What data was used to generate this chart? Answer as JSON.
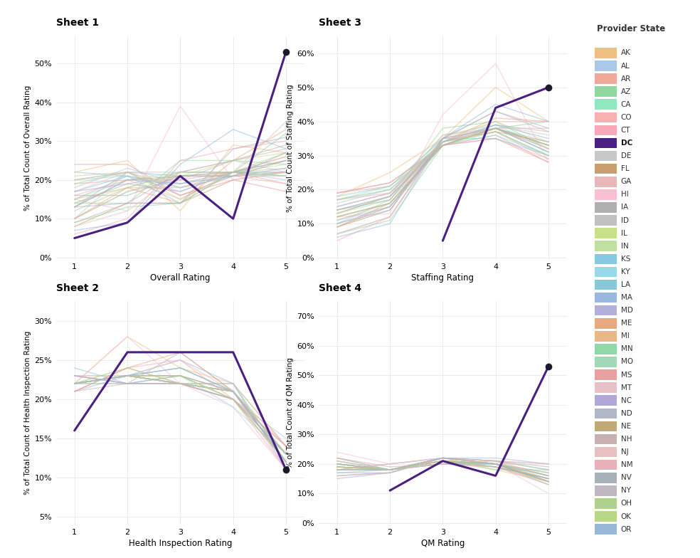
{
  "states": [
    "AK",
    "AL",
    "AR",
    "AZ",
    "CA",
    "CO",
    "CT",
    "DC",
    "DE",
    "FL",
    "GA",
    "HI",
    "IA",
    "ID",
    "IL",
    "IN",
    "KS",
    "KY",
    "LA",
    "MA",
    "MD",
    "ME",
    "MI",
    "MN",
    "MO",
    "MS",
    "MT",
    "NC",
    "ND",
    "NE",
    "NH",
    "NJ",
    "NM",
    "NV",
    "NY",
    "OH",
    "OK",
    "OR"
  ],
  "state_colors": {
    "AK": "#f0c080",
    "AL": "#aac8e8",
    "AR": "#f0a898",
    "AZ": "#90d8a0",
    "CA": "#90e8c0",
    "CO": "#f8b0b0",
    "CT": "#f8a8b8",
    "DC": "#4a2080",
    "DE": "#c8c8c8",
    "FL": "#c8a070",
    "GA": "#e8b8b8",
    "HI": "#f8c0d0",
    "IA": "#b0b0b0",
    "ID": "#c0c0c0",
    "IL": "#c8e088",
    "IN": "#c0e0a0",
    "KS": "#88c8e0",
    "KY": "#98d8e8",
    "LA": "#88c8d8",
    "MA": "#98b8e0",
    "MD": "#b0b0d8",
    "ME": "#e8a880",
    "MI": "#e8b888",
    "MN": "#90d8a8",
    "MO": "#a0d8b8",
    "MS": "#e8a0a0",
    "MT": "#e8c0c8",
    "NC": "#b0a8d8",
    "ND": "#b0b8c8",
    "NE": "#c0a878",
    "NH": "#c8b0b0",
    "NJ": "#e8c0c0",
    "NM": "#e8b0b8",
    "NV": "#a8b0b8",
    "NY": "#c0b8c0",
    "OH": "#b0d090",
    "OK": "#b8d888",
    "OR": "#98b8d8"
  },
  "dc_color": "#4a2080",
  "background_color": "#ffffff",
  "grid_color": "#e8e8e8",
  "sheet1_title": "Sheet 1",
  "sheet2_title": "Sheet 2",
  "sheet3_title": "Sheet 3",
  "sheet4_title": "Sheet 4",
  "sheet1_xlabel": "Overall Rating",
  "sheet2_xlabel": "Health Inspection Rating",
  "sheet3_xlabel": "Staffing Rating",
  "sheet4_xlabel": "QM Rating",
  "sheet1_ylabel": "% of Total Count of Overall Rating",
  "sheet2_ylabel": "% of Total Count of Health Inspection Rating",
  "sheet3_ylabel": "% of Total Count of Staffing Rating",
  "sheet4_ylabel": "% of Total Count of QM Rating",
  "legend_title": "Provider State",
  "x_vals": [
    1,
    2,
    3,
    4,
    5
  ],
  "sheet1_ylim": [
    -0.005,
    0.57
  ],
  "sheet2_ylim": [
    0.04,
    0.325
  ],
  "sheet3_ylim": [
    -0.005,
    0.65
  ],
  "sheet4_ylim": [
    -0.005,
    0.75
  ],
  "sheet1_yticks": [
    0.0,
    0.1,
    0.2,
    0.3,
    0.4,
    0.5
  ],
  "sheet2_yticks": [
    0.05,
    0.1,
    0.15,
    0.2,
    0.25,
    0.3
  ],
  "sheet3_yticks": [
    0.0,
    0.1,
    0.2,
    0.3,
    0.4,
    0.5,
    0.6
  ],
  "sheet4_yticks": [
    0.0,
    0.1,
    0.2,
    0.3,
    0.4,
    0.5,
    0.6,
    0.7
  ],
  "dc_sheet1": [
    0.05,
    0.09,
    0.21,
    0.1,
    0.53
  ],
  "dc_sheet2": [
    0.16,
    0.26,
    0.26,
    0.26,
    0.11
  ],
  "dc_sheet3": [
    null,
    null,
    0.05,
    0.44,
    0.5
  ],
  "dc_sheet4": [
    null,
    0.11,
    0.21,
    0.16,
    0.53
  ],
  "states_sheet1": {
    "AK": [
      0.22,
      0.25,
      0.12,
      0.29,
      0.27
    ],
    "AL": [
      0.18,
      0.23,
      0.19,
      0.22,
      0.2
    ],
    "AR": [
      0.19,
      0.2,
      0.2,
      0.22,
      0.19
    ],
    "AZ": [
      0.14,
      0.14,
      0.25,
      0.25,
      0.24
    ],
    "CA": [
      0.15,
      0.2,
      0.22,
      0.22,
      0.22
    ],
    "CO": [
      0.16,
      0.2,
      0.15,
      0.22,
      0.26
    ],
    "CT": [
      0.06,
      0.1,
      0.25,
      0.28,
      0.3
    ],
    "DE": [
      0.1,
      0.22,
      0.22,
      0.25,
      0.22
    ],
    "FL": [
      0.08,
      0.14,
      0.14,
      0.2,
      0.22
    ],
    "GA": [
      0.21,
      0.22,
      0.16,
      0.21,
      0.19
    ],
    "HI": [
      0.15,
      0.12,
      0.39,
      0.2,
      0.22
    ],
    "IA": [
      0.14,
      0.19,
      0.21,
      0.21,
      0.23
    ],
    "ID": [
      0.15,
      0.21,
      0.19,
      0.22,
      0.23
    ],
    "IL": [
      0.1,
      0.17,
      0.21,
      0.25,
      0.27
    ],
    "IN": [
      0.14,
      0.18,
      0.22,
      0.22,
      0.24
    ],
    "KS": [
      0.17,
      0.21,
      0.18,
      0.21,
      0.22
    ],
    "KY": [
      0.2,
      0.21,
      0.17,
      0.22,
      0.21
    ],
    "LA": [
      0.22,
      0.21,
      0.14,
      0.22,
      0.22
    ],
    "MA": [
      0.07,
      0.09,
      0.24,
      0.33,
      0.28
    ],
    "MD": [
      0.13,
      0.14,
      0.14,
      0.28,
      0.31
    ],
    "ME": [
      0.1,
      0.18,
      0.14,
      0.25,
      0.33
    ],
    "MI": [
      0.15,
      0.18,
      0.18,
      0.22,
      0.26
    ],
    "MN": [
      0.09,
      0.13,
      0.14,
      0.22,
      0.32
    ],
    "MO": [
      0.19,
      0.22,
      0.18,
      0.21,
      0.21
    ],
    "MS": [
      0.24,
      0.24,
      0.16,
      0.2,
      0.17
    ],
    "MT": [
      0.17,
      0.22,
      0.18,
      0.21,
      0.22
    ],
    "NC": [
      0.17,
      0.19,
      0.17,
      0.22,
      0.25
    ],
    "ND": [
      0.13,
      0.22,
      0.21,
      0.22,
      0.21
    ],
    "NE": [
      0.13,
      0.2,
      0.21,
      0.21,
      0.25
    ],
    "NH": [
      0.09,
      0.14,
      0.22,
      0.25,
      0.29
    ],
    "NJ": [
      0.08,
      0.12,
      0.22,
      0.22,
      0.35
    ],
    "NM": [
      0.2,
      0.22,
      0.16,
      0.21,
      0.22
    ],
    "NV": [
      0.16,
      0.16,
      0.21,
      0.22,
      0.25
    ],
    "NY": [
      0.1,
      0.17,
      0.2,
      0.25,
      0.28
    ],
    "OH": [
      0.12,
      0.18,
      0.22,
      0.22,
      0.27
    ],
    "OK": [
      0.2,
      0.22,
      0.15,
      0.22,
      0.21
    ],
    "OR": [
      0.13,
      0.2,
      0.19,
      0.21,
      0.27
    ]
  },
  "states_sheet2": {
    "AK": [
      0.22,
      0.28,
      0.24,
      0.22,
      0.12
    ],
    "AL": [
      0.22,
      0.23,
      0.22,
      0.2,
      0.15
    ],
    "AR": [
      0.22,
      0.23,
      0.22,
      0.21,
      0.14
    ],
    "AZ": [
      0.22,
      0.24,
      0.22,
      0.22,
      0.14
    ],
    "CA": [
      0.22,
      0.23,
      0.22,
      0.22,
      0.12
    ],
    "CO": [
      0.21,
      0.24,
      0.22,
      0.22,
      0.14
    ],
    "CT": [
      0.21,
      0.24,
      0.25,
      0.2,
      0.11
    ],
    "DE": [
      0.22,
      0.23,
      0.22,
      0.21,
      0.13
    ],
    "FL": [
      0.23,
      0.23,
      0.22,
      0.2,
      0.13
    ],
    "GA": [
      0.23,
      0.22,
      0.22,
      0.2,
      0.14
    ],
    "HI": [
      0.22,
      0.28,
      0.22,
      0.19,
      0.11
    ],
    "IA": [
      0.22,
      0.23,
      0.22,
      0.21,
      0.13
    ],
    "ID": [
      0.22,
      0.23,
      0.22,
      0.21,
      0.13
    ],
    "IL": [
      0.22,
      0.24,
      0.22,
      0.2,
      0.12
    ],
    "IN": [
      0.22,
      0.23,
      0.23,
      0.2,
      0.12
    ],
    "KS": [
      0.22,
      0.23,
      0.22,
      0.21,
      0.13
    ],
    "KY": [
      0.23,
      0.22,
      0.23,
      0.19,
      0.13
    ],
    "LA": [
      0.24,
      0.22,
      0.22,
      0.21,
      0.12
    ],
    "MA": [
      0.21,
      0.23,
      0.25,
      0.22,
      0.11
    ],
    "MD": [
      0.22,
      0.23,
      0.24,
      0.21,
      0.12
    ],
    "ME": [
      0.21,
      0.24,
      0.26,
      0.21,
      0.12
    ],
    "MI": [
      0.22,
      0.23,
      0.23,
      0.2,
      0.12
    ],
    "MN": [
      0.22,
      0.23,
      0.24,
      0.21,
      0.12
    ],
    "MO": [
      0.22,
      0.22,
      0.23,
      0.2,
      0.13
    ],
    "MS": [
      0.23,
      0.22,
      0.22,
      0.2,
      0.14
    ],
    "MT": [
      0.22,
      0.23,
      0.22,
      0.21,
      0.13
    ],
    "NC": [
      0.23,
      0.22,
      0.22,
      0.2,
      0.13
    ],
    "ND": [
      0.22,
      0.22,
      0.23,
      0.21,
      0.13
    ],
    "NE": [
      0.22,
      0.23,
      0.23,
      0.21,
      0.12
    ],
    "NH": [
      0.21,
      0.22,
      0.26,
      0.21,
      0.12
    ],
    "NJ": [
      0.22,
      0.23,
      0.25,
      0.21,
      0.11
    ],
    "NM": [
      0.22,
      0.23,
      0.22,
      0.21,
      0.13
    ],
    "NV": [
      0.22,
      0.23,
      0.22,
      0.21,
      0.13
    ],
    "NY": [
      0.22,
      0.23,
      0.23,
      0.21,
      0.12
    ],
    "OH": [
      0.22,
      0.23,
      0.23,
      0.2,
      0.12
    ],
    "OK": [
      0.22,
      0.23,
      0.22,
      0.21,
      0.13
    ],
    "OR": [
      0.22,
      0.23,
      0.24,
      0.21,
      0.12
    ]
  },
  "states_sheet3": {
    "AK": [
      0.18,
      0.25,
      0.35,
      0.5,
      0.4
    ],
    "AL": [
      0.16,
      0.2,
      0.34,
      0.37,
      0.3
    ],
    "AR": [
      0.19,
      0.22,
      0.33,
      0.36,
      0.28
    ],
    "AZ": [
      0.14,
      0.18,
      0.38,
      0.4,
      0.32
    ],
    "CA": [
      0.13,
      0.17,
      0.36,
      0.39,
      0.32
    ],
    "CO": [
      0.15,
      0.19,
      0.36,
      0.38,
      0.32
    ],
    "CT": [
      0.05,
      0.12,
      0.35,
      0.38,
      0.38
    ],
    "DE": [
      0.1,
      0.17,
      0.33,
      0.39,
      0.36
    ],
    "FL": [
      0.09,
      0.15,
      0.34,
      0.37,
      0.34
    ],
    "GA": [
      0.19,
      0.21,
      0.33,
      0.35,
      0.29
    ],
    "HI": [
      0.12,
      0.13,
      0.42,
      0.57,
      0.28
    ],
    "IA": [
      0.12,
      0.16,
      0.33,
      0.38,
      0.33
    ],
    "ID": [
      0.13,
      0.18,
      0.34,
      0.38,
      0.32
    ],
    "IL": [
      0.09,
      0.14,
      0.35,
      0.4,
      0.34
    ],
    "IN": [
      0.13,
      0.18,
      0.33,
      0.38,
      0.31
    ],
    "KS": [
      0.15,
      0.19,
      0.33,
      0.38,
      0.31
    ],
    "KY": [
      0.17,
      0.2,
      0.33,
      0.36,
      0.3
    ],
    "LA": [
      0.18,
      0.21,
      0.35,
      0.35,
      0.3
    ],
    "MA": [
      0.06,
      0.1,
      0.35,
      0.45,
      0.4
    ],
    "MD": [
      0.1,
      0.14,
      0.35,
      0.43,
      0.38
    ],
    "ME": [
      0.09,
      0.16,
      0.34,
      0.41,
      0.4
    ],
    "MI": [
      0.13,
      0.18,
      0.34,
      0.38,
      0.33
    ],
    "MN": [
      0.07,
      0.11,
      0.33,
      0.38,
      0.4
    ],
    "MO": [
      0.17,
      0.21,
      0.33,
      0.37,
      0.3
    ],
    "MS": [
      0.19,
      0.22,
      0.33,
      0.35,
      0.28
    ],
    "MT": [
      0.15,
      0.19,
      0.34,
      0.38,
      0.32
    ],
    "NC": [
      0.14,
      0.18,
      0.33,
      0.38,
      0.33
    ],
    "ND": [
      0.11,
      0.15,
      0.33,
      0.38,
      0.34
    ],
    "NE": [
      0.12,
      0.16,
      0.33,
      0.38,
      0.33
    ],
    "NH": [
      0.07,
      0.12,
      0.35,
      0.43,
      0.37
    ],
    "NJ": [
      0.07,
      0.12,
      0.34,
      0.4,
      0.4
    ],
    "NM": [
      0.17,
      0.19,
      0.34,
      0.37,
      0.29
    ],
    "NV": [
      0.14,
      0.17,
      0.35,
      0.38,
      0.31
    ],
    "NY": [
      0.09,
      0.14,
      0.34,
      0.39,
      0.37
    ],
    "OH": [
      0.11,
      0.16,
      0.33,
      0.38,
      0.33
    ],
    "OK": [
      0.17,
      0.2,
      0.34,
      0.37,
      0.3
    ],
    "OR": [
      0.1,
      0.15,
      0.34,
      0.39,
      0.35
    ]
  },
  "states_sheet4": {
    "AK": [
      0.22,
      0.18,
      0.22,
      0.18,
      0.14
    ],
    "AL": [
      0.18,
      0.2,
      0.22,
      0.2,
      0.14
    ],
    "AR": [
      0.2,
      0.18,
      0.2,
      0.21,
      0.14
    ],
    "AZ": [
      0.2,
      0.18,
      0.21,
      0.18,
      0.18
    ],
    "CA": [
      0.2,
      0.18,
      0.21,
      0.2,
      0.16
    ],
    "CO": [
      0.18,
      0.2,
      0.22,
      0.2,
      0.17
    ],
    "CT": [
      0.16,
      0.17,
      0.22,
      0.21,
      0.2
    ],
    "DE": [
      0.18,
      0.2,
      0.22,
      0.2,
      0.16
    ],
    "FL": [
      0.2,
      0.18,
      0.21,
      0.19,
      0.15
    ],
    "GA": [
      0.21,
      0.18,
      0.2,
      0.2,
      0.14
    ],
    "HI": [
      0.24,
      0.2,
      0.22,
      0.2,
      0.1
    ],
    "IA": [
      0.19,
      0.18,
      0.21,
      0.2,
      0.14
    ],
    "ID": [
      0.19,
      0.18,
      0.21,
      0.2,
      0.15
    ],
    "IL": [
      0.18,
      0.18,
      0.22,
      0.2,
      0.17
    ],
    "IN": [
      0.19,
      0.18,
      0.21,
      0.2,
      0.15
    ],
    "KS": [
      0.2,
      0.18,
      0.21,
      0.19,
      0.15
    ],
    "KY": [
      0.21,
      0.18,
      0.2,
      0.2,
      0.14
    ],
    "LA": [
      0.22,
      0.18,
      0.2,
      0.2,
      0.13
    ],
    "MA": [
      0.15,
      0.17,
      0.22,
      0.22,
      0.2
    ],
    "MD": [
      0.17,
      0.17,
      0.22,
      0.21,
      0.18
    ],
    "ME": [
      0.18,
      0.18,
      0.22,
      0.21,
      0.16
    ],
    "MI": [
      0.19,
      0.18,
      0.22,
      0.2,
      0.15
    ],
    "MN": [
      0.17,
      0.18,
      0.22,
      0.21,
      0.18
    ],
    "MO": [
      0.2,
      0.18,
      0.21,
      0.2,
      0.14
    ],
    "MS": [
      0.22,
      0.19,
      0.2,
      0.19,
      0.13
    ],
    "MT": [
      0.19,
      0.18,
      0.21,
      0.2,
      0.14
    ],
    "NC": [
      0.2,
      0.18,
      0.21,
      0.2,
      0.14
    ],
    "ND": [
      0.18,
      0.18,
      0.21,
      0.2,
      0.14
    ],
    "NE": [
      0.19,
      0.18,
      0.21,
      0.2,
      0.14
    ],
    "NH": [
      0.16,
      0.17,
      0.22,
      0.21,
      0.19
    ],
    "NJ": [
      0.16,
      0.17,
      0.22,
      0.21,
      0.2
    ],
    "NM": [
      0.21,
      0.18,
      0.2,
      0.19,
      0.14
    ],
    "NV": [
      0.2,
      0.18,
      0.21,
      0.19,
      0.15
    ],
    "NY": [
      0.18,
      0.18,
      0.22,
      0.2,
      0.17
    ],
    "OH": [
      0.19,
      0.18,
      0.21,
      0.2,
      0.16
    ],
    "OK": [
      0.2,
      0.18,
      0.21,
      0.19,
      0.14
    ],
    "OR": [
      0.18,
      0.18,
      0.22,
      0.2,
      0.16
    ]
  }
}
